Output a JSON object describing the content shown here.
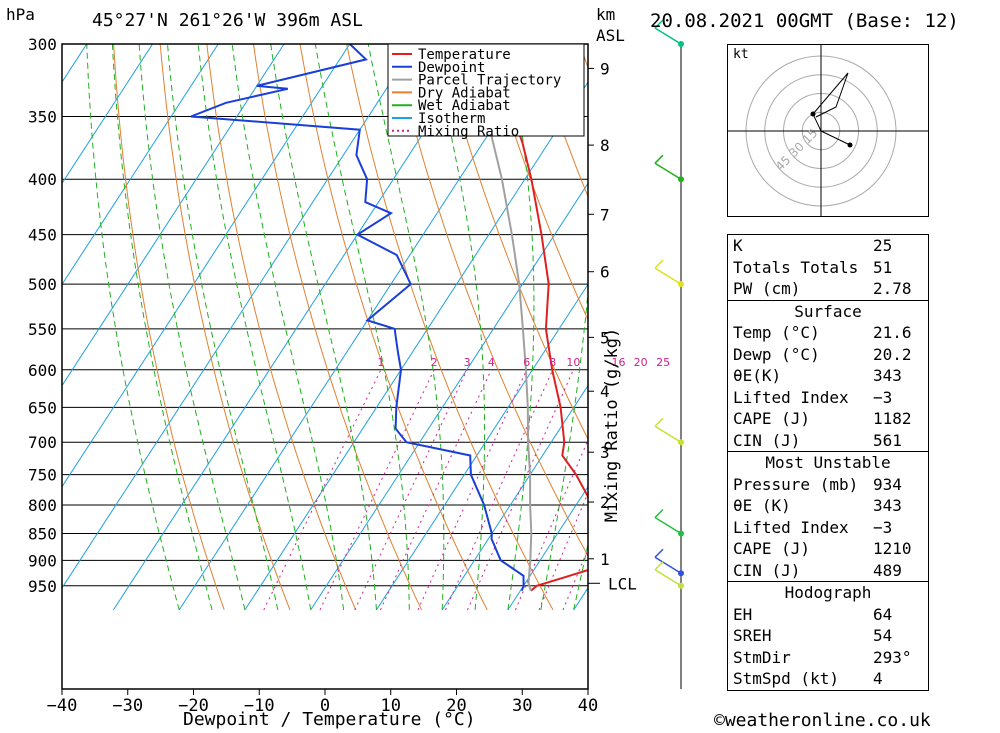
{
  "header": {
    "pressure_unit": "hPa",
    "location": "45°27'N  261°26'W  396m  ASL",
    "height_unit_line1": "km",
    "height_unit_line2": "ASL",
    "datetime": "20.08.2021  00GMT  (Base: 12)"
  },
  "footer": {
    "credit": "©weatheronline.co.uk"
  },
  "chart_data": {
    "type": "line",
    "title": "45°27'N  261°26'W  396m  ASL",
    "xlabel": "Dewpoint / Temperature (°C)",
    "ylabel": "hPa",
    "y2label": "Mixing Ratio (g/kg)",
    "xlim": [
      -40,
      40
    ],
    "ylim": [
      980,
      300
    ],
    "y_scale": "log",
    "x_ticks": [
      "−40",
      "−30",
      "−20",
      "−10",
      "0",
      "10",
      "20",
      "30",
      "40"
    ],
    "pressure_ticks": [
      300,
      350,
      400,
      450,
      500,
      550,
      600,
      650,
      700,
      750,
      800,
      850,
      900,
      950
    ],
    "km_ticks": [
      {
        "label": "9",
        "p": 316
      },
      {
        "label": "8",
        "p": 372
      },
      {
        "label": "7",
        "p": 431
      },
      {
        "label": "6",
        "p": 487
      },
      {
        "label": "5",
        "p": 560
      },
      {
        "label": "4",
        "p": 628
      },
      {
        "label": "3",
        "p": 715
      },
      {
        "label": "2",
        "p": 795
      },
      {
        "label": "1",
        "p": 897
      }
    ],
    "lcl_label": "LCL",
    "lcl_p": 945,
    "mixing_ratio_labels": [
      "1",
      "2",
      "3",
      "4",
      "6",
      "8",
      "10",
      "16",
      "20",
      "25"
    ],
    "legend": [
      "Temperature",
      "Dewpoint",
      "Parcel Trajectory",
      "Dry Adiabat",
      "Wet Adiabat",
      "Isotherm",
      "Mixing Ratio"
    ],
    "legend_position": "top-right",
    "grid": true,
    "colors": {
      "temperature": "#e02020",
      "dewpoint": "#1a3fd8",
      "parcel": "#a0a0a0",
      "dry_adiabat": "#e08030",
      "wet_adiabat": "#20b020",
      "isotherm": "#20a0e0",
      "mixing_ratio": "#d0208f"
    },
    "series": [
      {
        "name": "Temperature",
        "points": [
          [
            960,
            21.6
          ],
          [
            950,
            22
          ],
          [
            935,
            25
          ],
          [
            915,
            29
          ],
          [
            900,
            29.5
          ],
          [
            880,
            29
          ],
          [
            850,
            27.5
          ],
          [
            800,
            22.5
          ],
          [
            750,
            17
          ],
          [
            720,
            13
          ],
          [
            700,
            12
          ],
          [
            650,
            8
          ],
          [
            600,
            3
          ],
          [
            550,
            -2
          ],
          [
            500,
            -6
          ],
          [
            450,
            -12
          ],
          [
            400,
            -19
          ],
          [
            370,
            -24
          ],
          [
            350,
            -28
          ],
          [
            330,
            -35
          ],
          [
            300,
            -45
          ]
        ]
      },
      {
        "name": "Dewpoint",
        "points": [
          [
            960,
            20.2
          ],
          [
            950,
            20
          ],
          [
            930,
            19
          ],
          [
            900,
            14
          ],
          [
            860,
            10.5
          ],
          [
            850,
            10
          ],
          [
            800,
            6
          ],
          [
            750,
            1
          ],
          [
            720,
            -1
          ],
          [
            700,
            -12
          ],
          [
            680,
            -15
          ],
          [
            650,
            -17
          ],
          [
            600,
            -20
          ],
          [
            580,
            -22
          ],
          [
            560,
            -24
          ],
          [
            550,
            -25
          ],
          [
            540,
            -30
          ],
          [
            500,
            -27
          ],
          [
            470,
            -32
          ],
          [
            450,
            -40
          ],
          [
            430,
            -37
          ],
          [
            420,
            -42
          ],
          [
            400,
            -44
          ],
          [
            380,
            -48
          ],
          [
            360,
            -50
          ],
          [
            350,
            -77
          ],
          [
            340,
            -73
          ],
          [
            330,
            -65
          ],
          [
            328,
            -70
          ],
          [
            310,
            -56
          ],
          [
            300,
            -60
          ]
        ]
      },
      {
        "name": "Parcel Trajectory",
        "points": [
          [
            960,
            21.6
          ],
          [
            945,
            20.5
          ],
          [
            900,
            18.5
          ],
          [
            850,
            16
          ],
          [
            800,
            13
          ],
          [
            750,
            10
          ],
          [
            700,
            6.5
          ],
          [
            650,
            3
          ],
          [
            600,
            -1
          ],
          [
            550,
            -5.5
          ],
          [
            500,
            -10.5
          ],
          [
            450,
            -16.5
          ],
          [
            400,
            -23.5
          ],
          [
            350,
            -32
          ],
          [
            300,
            -42
          ]
        ]
      }
    ]
  },
  "wind_barbs": {
    "direction_note": "barbs plotted along right-hand staff",
    "levels": [
      {
        "p": 300,
        "color": "#00c080"
      },
      {
        "p": 400,
        "color": "#20b020"
      },
      {
        "p": 500,
        "color": "#e0e020"
      },
      {
        "p": 700,
        "color": "#c8e030"
      },
      {
        "p": 850,
        "color": "#20c040"
      },
      {
        "p": 925,
        "color": "#3050e0"
      },
      {
        "p": 950,
        "color": "#c0e040"
      }
    ]
  },
  "hodograph": {
    "unit": "kt",
    "ring_labels": [
      "15",
      "30",
      "45"
    ]
  },
  "indices": {
    "general": [
      {
        "label": "K",
        "value": "25"
      },
      {
        "label": "Totals Totals",
        "value": "51"
      },
      {
        "label": "PW (cm)",
        "value": "2.78"
      }
    ],
    "surface": {
      "title": "Surface",
      "rows": [
        {
          "label": "Temp (°C)",
          "value": "21.6"
        },
        {
          "label": "Dewp (°C)",
          "value": "20.2"
        },
        {
          "label": "θE(K)",
          "value": "343"
        },
        {
          "label": "Lifted Index",
          "value": "−3"
        },
        {
          "label": "CAPE (J)",
          "value": "1182"
        },
        {
          "label": "CIN (J)",
          "value": "561"
        }
      ]
    },
    "most_unstable": {
      "title": "Most Unstable",
      "rows": [
        {
          "label": "Pressure (mb)",
          "value": "934"
        },
        {
          "label": "θE (K)",
          "value": "343"
        },
        {
          "label": "Lifted Index",
          "value": "−3"
        },
        {
          "label": "CAPE (J)",
          "value": "1210"
        },
        {
          "label": "CIN (J)",
          "value": "489"
        }
      ]
    },
    "hodograph_box": {
      "title": "Hodograph",
      "rows": [
        {
          "label": "EH",
          "value": "64"
        },
        {
          "label": "SREH",
          "value": "54"
        },
        {
          "label": "StmDir",
          "value": "293°"
        },
        {
          "label": "StmSpd (kt)",
          "value": "4"
        }
      ]
    }
  }
}
